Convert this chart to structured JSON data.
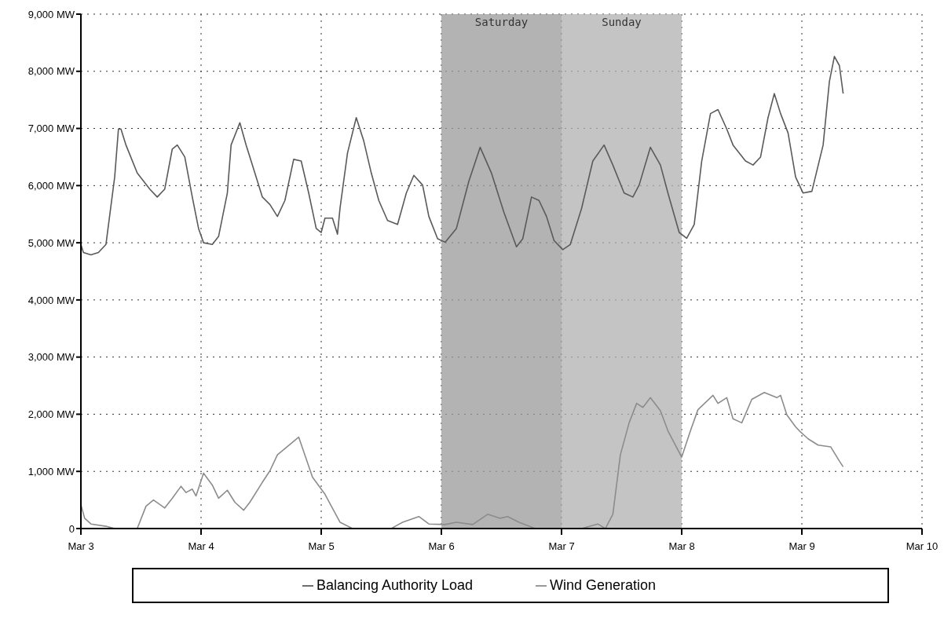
{
  "chart_data": {
    "type": "line",
    "xlim": [
      "--03-03",
      "--03-10"
    ],
    "xticks": [
      {
        "value": "--03-03",
        "label": "Mar 3"
      },
      {
        "value": "--03-04",
        "label": "Mar 4"
      },
      {
        "value": "--03-05",
        "label": "Mar 5"
      },
      {
        "value": "--03-06",
        "label": "Mar 6"
      },
      {
        "value": "--03-07",
        "label": "Mar 7"
      },
      {
        "value": "--03-08",
        "label": "Mar 8"
      },
      {
        "value": "--03-09",
        "label": "Mar 9"
      },
      {
        "value": "--03-10",
        "label": "Mar 10"
      }
    ],
    "ylim": [
      0,
      9000
    ],
    "yticks": [
      0,
      {
        "value": 1000,
        "label": "1,000 MW"
      },
      {
        "value": 2000,
        "label": "2,000 MW"
      },
      {
        "value": 3000,
        "label": "3,000 MW"
      },
      {
        "value": 4000,
        "label": "4,000 MW"
      },
      {
        "value": 5000,
        "label": "5,000 MW"
      },
      {
        "value": 6000,
        "label": "6,000 MW"
      },
      {
        "value": 7000,
        "label": "7,000 MW"
      },
      {
        "value": 8000,
        "label": "8,000 MW"
      },
      {
        "value": 9000,
        "label": "9,000 MW"
      }
    ],
    "grid": true,
    "legend": "bottom",
    "line_style": "solid",
    "marker": "none",
    "bands": [
      {
        "axis": "x",
        "from": "--03-06",
        "to": "--03-07",
        "label": "Saturday",
        "color": "#9a9a9a"
      },
      {
        "axis": "x",
        "from": "--03-07",
        "to": "--03-08",
        "label": "Sunday",
        "color": "#b0b0b0"
      }
    ],
    "series": [
      {
        "name": "Balancing Authority Load",
        "color": "#5a5a5a",
        "x": [
          "--03-03T00:00",
          "--03-03T00:30",
          "--03-03T02:00",
          "--03-03T03:30",
          "--03-03T05:00",
          "--03-03T06:45",
          "--03-03T07:30",
          "--03-03T08:00",
          "--03-03T09:00",
          "--03-03T11:15",
          "--03-03T13:45",
          "--03-03T15:15",
          "--03-03T16:45",
          "--03-03T18:15",
          "--03-03T19:15",
          "--03-03T20:45",
          "--03-03T22:15",
          "--03-03T23:30",
          "--03-04T00:30",
          "--03-04T02:15",
          "--03-04T03:30",
          "--03-04T05:15",
          "--03-04T06:00",
          "--03-04T07:45",
          "--03-04T09:00",
          "--03-04T10:45",
          "--03-04T12:15",
          "--03-04T13:45",
          "--03-04T15:15",
          "--03-04T16:45",
          "--03-04T18:30",
          "--03-04T20:00",
          "--03-04T21:30",
          "--03-04T23:00",
          "--03-05T00:00",
          "--03-05T00:45",
          "--03-05T02:15",
          "--03-05T03:15",
          "--03-05T03:45",
          "--03-05T05:15",
          "--03-05T07:00",
          "--03-05T08:30",
          "--03-05T10:00",
          "--03-05T11:30",
          "--03-05T13:15",
          "--03-05T15:15",
          "--03-05T17:00",
          "--03-05T18:30",
          "--03-05T20:15",
          "--03-05T21:30",
          "--03-05T23:15",
          "--03-06T00:45",
          "--03-06T03:00",
          "--03-06T05:30",
          "--03-06T07:45",
          "--03-06T10:00",
          "--03-06T12:30",
          "--03-06T15:00",
          "--03-06T16:15",
          "--03-06T18:00",
          "--03-06T19:30",
          "--03-06T21:00",
          "--03-06T22:30",
          "--03-07T00:15",
          "--03-07T01:45",
          "--03-07T04:00",
          "--03-07T06:15",
          "--03-07T08:30",
          "--03-07T10:15",
          "--03-07T12:30",
          "--03-07T14:15",
          "--03-07T15:30",
          "--03-07T17:45",
          "--03-07T19:45",
          "--03-07T21:15",
          "--03-07T23:30",
          "--03-08T01:00",
          "--03-08T02:30",
          "--03-08T04:00",
          "--03-08T05:45",
          "--03-08T07:15",
          "--03-08T09:00",
          "--03-08T10:15",
          "--03-08T12:45",
          "--03-08T14:15",
          "--03-08T15:45",
          "--03-08T17:15",
          "--03-08T18:30",
          "--03-08T19:45",
          "--03-08T21:15",
          "--03-08T22:45",
          "--03-09T00:15",
          "--03-09T02:00",
          "--03-09T04:15",
          "--03-09T05:30",
          "--03-09T06:30",
          "--03-09T07:30",
          "--03-09T08:15"
        ],
        "values": [
          4970,
          4830,
          4790,
          4830,
          4970,
          6150,
          6990,
          6990,
          6710,
          6220,
          5940,
          5800,
          5940,
          6640,
          6710,
          6500,
          5800,
          5250,
          5000,
          4970,
          5110,
          5870,
          6710,
          7100,
          6710,
          6220,
          5800,
          5670,
          5460,
          5740,
          6460,
          6430,
          5870,
          5250,
          5180,
          5430,
          5430,
          5150,
          5600,
          6570,
          7190,
          6780,
          6220,
          5740,
          5390,
          5320,
          5870,
          6180,
          6010,
          5460,
          5070,
          5010,
          5250,
          6080,
          6670,
          6220,
          5530,
          4930,
          5070,
          5800,
          5740,
          5460,
          5040,
          4880,
          4970,
          5600,
          6430,
          6710,
          6360,
          5870,
          5800,
          6010,
          6670,
          6360,
          5870,
          5180,
          5080,
          5320,
          6430,
          7260,
          7330,
          6990,
          6710,
          6430,
          6360,
          6500,
          7190,
          7610,
          7260,
          6920,
          6150,
          5870,
          5900,
          6710,
          7820,
          8260,
          8100,
          7610
        ]
      },
      {
        "name": "Wind Generation",
        "color": "#8c8c8c",
        "x": [
          "--03-03T00:00",
          "--03-03T00:45",
          "--03-03T02:00",
          "--03-03T05:00",
          "--03-03T06:45",
          "--03-03T11:15",
          "--03-03T13:00",
          "--03-03T14:30",
          "--03-03T16:45",
          "--03-03T18:15",
          "--03-03T20:00",
          "--03-03T21:00",
          "--03-03T22:15",
          "--03-03T23:00",
          "--03-04T00:30",
          "--03-04T02:15",
          "--03-04T03:30",
          "--03-04T05:15",
          "--03-04T06:45",
          "--03-04T08:30",
          "--03-04T09:45",
          "--03-04T12:15",
          "--03-04T13:45",
          "--03-04T15:15",
          "--03-04T19:30",
          "--03-04T21:00",
          "--03-04T22:15",
          "--03-05T00:45",
          "--03-05T03:45",
          "--03-05T06:15",
          "--03-05T14:00",
          "--03-05T16:15",
          "--03-05T19:30",
          "--03-05T21:30",
          "--03-06T00:45",
          "--03-06T03:00",
          "--03-06T06:15",
          "--03-06T09:15",
          "--03-06T11:45",
          "--03-06T13:15",
          "--03-06T15:30",
          "--03-06T18:45",
          "--03-06T21:45",
          "--03-07T04:00",
          "--03-07T07:15",
          "--03-07T08:45",
          "--03-07T10:15",
          "--03-07T11:45",
          "--03-07T13:30",
          "--03-07T15:00",
          "--03-07T16:15",
          "--03-07T17:45",
          "--03-07T19:45",
          "--03-07T21:15",
          "--03-08T00:00",
          "--03-08T01:45",
          "--03-08T03:15",
          "--03-08T06:15",
          "--03-08T07:15",
          "--03-08T09:00",
          "--03-08T10:15",
          "--03-08T12:00",
          "--03-08T14:00",
          "--03-08T16:30",
          "--03-08T19:00",
          "--03-08T19:45",
          "--03-08T21:00",
          "--03-08T22:45",
          "--03-08T23:30",
          "--03-09T01:15",
          "--03-09T03:15",
          "--03-09T05:45",
          "--03-09T07:30",
          "--03-09T08:15"
        ],
        "values": [
          420,
          180,
          80,
          40,
          0,
          0,
          390,
          500,
          360,
          530,
          740,
          630,
          690,
          570,
          970,
          760,
          530,
          670,
          460,
          320,
          460,
          810,
          1010,
          1290,
          1600,
          1220,
          900,
          600,
          110,
          0,
          0,
          110,
          210,
          80,
          70,
          110,
          70,
          250,
          180,
          210,
          110,
          0,
          0,
          0,
          80,
          0,
          250,
          1290,
          1850,
          2190,
          2120,
          2290,
          2060,
          1710,
          1250,
          1710,
          2080,
          2330,
          2190,
          2290,
          1920,
          1850,
          2260,
          2380,
          2290,
          2330,
          1990,
          1780,
          1710,
          1570,
          1460,
          1430,
          1180,
          1080
        ]
      }
    ]
  }
}
